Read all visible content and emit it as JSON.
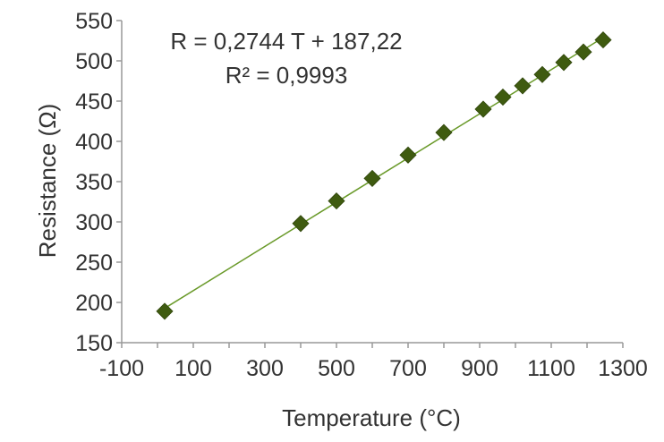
{
  "chart_data": {
    "type": "scatter",
    "title": "",
    "xlabel": "Temperature (°C)",
    "ylabel": "Resistance (Ω)",
    "xlim": [
      -100,
      1300
    ],
    "ylim": [
      150,
      550
    ],
    "x_ticks": [
      -100,
      100,
      300,
      500,
      700,
      900,
      1100,
      1300
    ],
    "y_ticks": [
      150,
      200,
      250,
      300,
      350,
      400,
      450,
      500,
      550
    ],
    "x_tick_labels": [
      "-100",
      "100",
      "300",
      "500",
      "700",
      "900",
      "1100",
      "1300"
    ],
    "y_tick_labels": [
      "150",
      "200",
      "250",
      "300",
      "350",
      "400",
      "450",
      "500",
      "550"
    ],
    "grid": false,
    "legend": "none",
    "series": [
      {
        "marker": "diamond",
        "color": "#3f5b10",
        "x": [
          20,
          400,
          500,
          600,
          700,
          800,
          910,
          965,
          1020,
          1075,
          1135,
          1190,
          1245
        ],
        "y": [
          189,
          298,
          326,
          354,
          383,
          411,
          440,
          455,
          469,
          483,
          498,
          511,
          526
        ]
      }
    ],
    "trendline": {
      "type": "linear",
      "slope": 0.2744,
      "intercept": 187.22,
      "color": "#6a9a2a",
      "x_range": [
        20,
        1245
      ]
    },
    "annotations": [
      "R = 0,2744 T + 187,22",
      "R² = 0,9993"
    ],
    "colors": {
      "axis": "#999999",
      "text": "#333333"
    }
  }
}
